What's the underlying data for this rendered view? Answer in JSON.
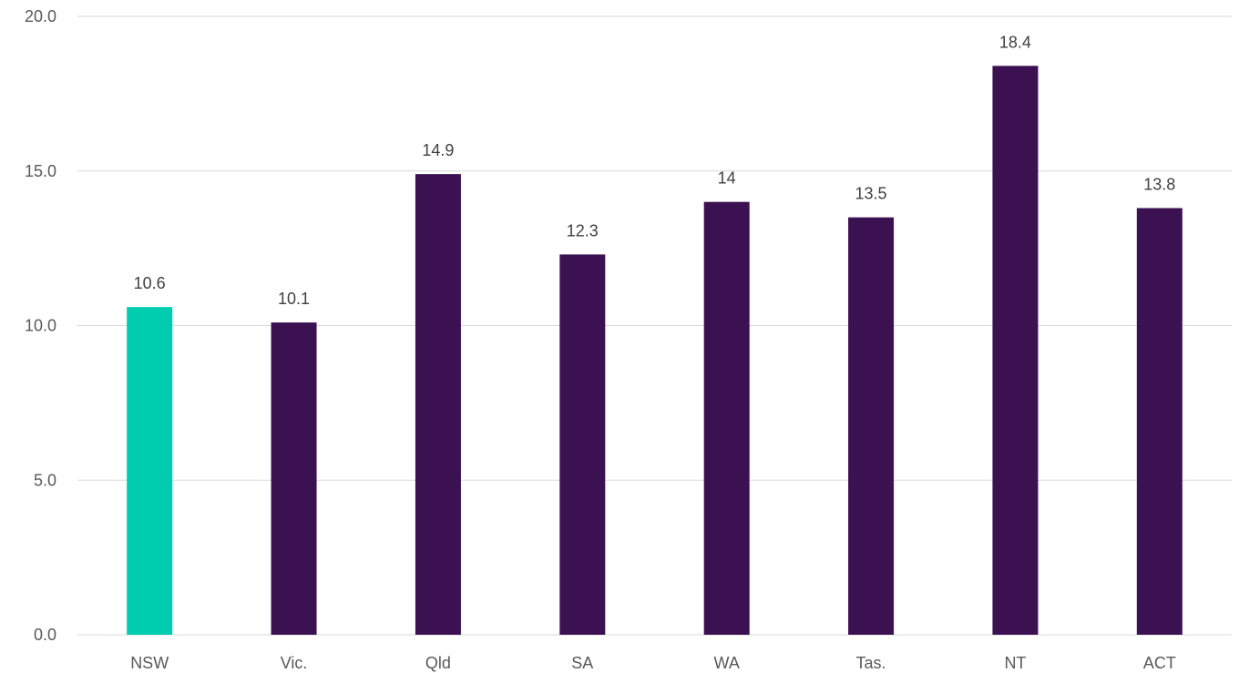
{
  "chart_data": {
    "type": "bar",
    "title": "",
    "xlabel": "",
    "ylabel": "",
    "categories": [
      "NSW",
      "Vic.",
      "Qld",
      "SA",
      "WA",
      "Tas.",
      "NT",
      "ACT"
    ],
    "values": [
      10.6,
      10.1,
      14.9,
      12.3,
      14,
      13.5,
      18.4,
      13.8
    ],
    "data_labels": [
      "10.6",
      "10.1",
      "14.9",
      "12.3",
      "14",
      "13.5",
      "18.4",
      "13.8"
    ],
    "highlight_index": 0,
    "ylim": [
      0,
      20
    ],
    "y_ticks": [
      0,
      5,
      10,
      15,
      20
    ],
    "y_tick_labels": [
      "0.0",
      "5.0",
      "10.0",
      "15.0",
      "20.0"
    ],
    "grid": true,
    "legend": "none",
    "colors": {
      "highlight": "#00CDB0",
      "default": "#3C1152",
      "gridline": "#d9d9d9",
      "text": "#595959"
    }
  }
}
